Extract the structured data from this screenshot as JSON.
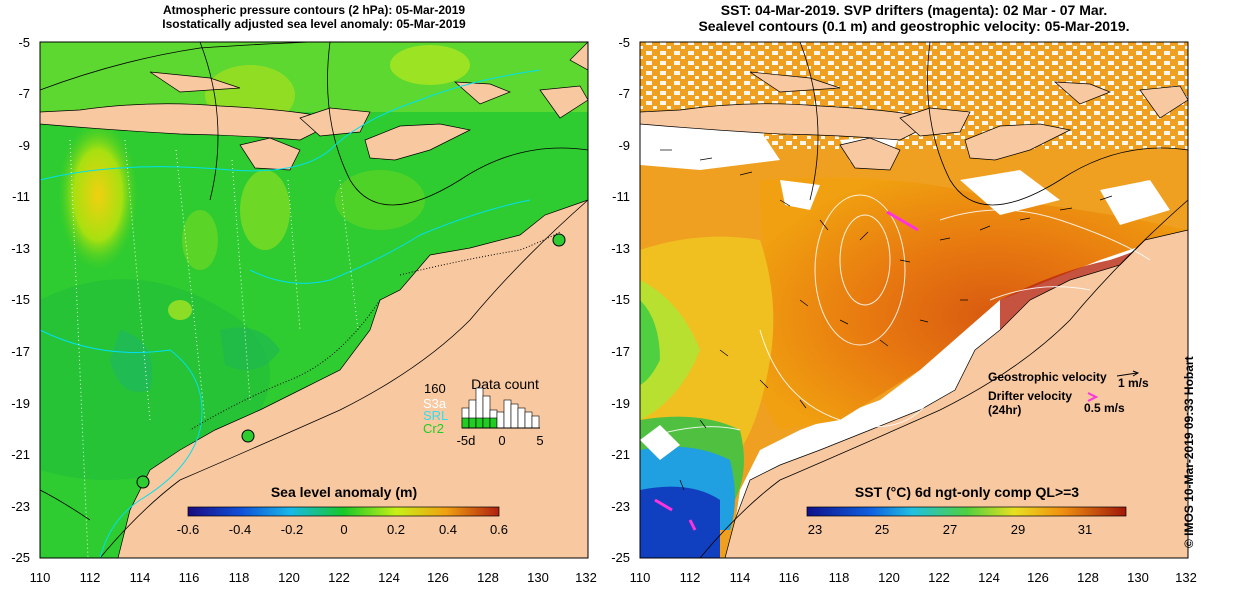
{
  "left_panel": {
    "title_line1": "Atmospheric pressure contours (2 hPa): 05-Mar-2019",
    "title_line2": "Isostatically adjusted sea level anomaly: 05-Mar-2019",
    "colorbar_label": "Sea level anomaly (m)",
    "colorbar_ticks": [
      "-0.6",
      "-0.4",
      "-0.2",
      "0",
      "0.2",
      "0.4",
      "0.6"
    ],
    "inset": {
      "title": "Data count",
      "max_label": "160",
      "satellites": [
        "S3a",
        "SRL",
        "Cr2"
      ],
      "satellite_colors": [
        "#ffffff",
        "#33ddee",
        "#22cc22"
      ],
      "x_ticks": [
        "-5d",
        "0",
        "5"
      ]
    }
  },
  "right_panel": {
    "title_line1": "SST: 04-Mar-2019. SVP drifters (magenta): 02 Mar - 07 Mar.",
    "title_line2": "Sealevel contours (0.1 m) and geostrophic velocity: 05-Mar-2019.",
    "colorbar_label": "SST (°C) 6d ngt-only comp QL>=3",
    "colorbar_ticks": [
      "23",
      "25",
      "27",
      "29",
      "31"
    ],
    "legend": {
      "geostrophic": "Geostrophic velocity",
      "geostrophic_scale": "1 m/s",
      "drifter_line1": "Drifter velocity",
      "drifter_line2": "(24hr)",
      "drifter_scale": "0.5 m/s"
    }
  },
  "axes": {
    "lon_ticks": [
      "110",
      "112",
      "114",
      "116",
      "118",
      "120",
      "122",
      "124",
      "126",
      "128",
      "130",
      "132"
    ],
    "lat_ticks": [
      "-5",
      "-7",
      "-9",
      "-11",
      "-13",
      "-15",
      "-17",
      "-19",
      "-21",
      "-23",
      "-25"
    ]
  },
  "credit": "© IMOS 10-Mar-2019 09:33 Hobart",
  "colors": {
    "land": "#f8c8a0",
    "cloud": "#ffffff",
    "drifter": "#ff33dd"
  }
}
